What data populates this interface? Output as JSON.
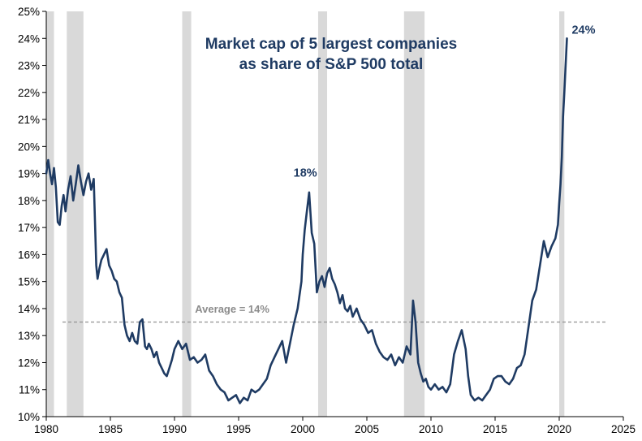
{
  "chart_data": {
    "type": "line",
    "title_lines": [
      "Market cap of 5 largest companies",
      "as share of S&P 500 total"
    ],
    "xlabel": "",
    "ylabel": "",
    "xlim": [
      1980,
      2025
    ],
    "ylim": [
      10,
      25
    ],
    "x_ticks": [
      "1980",
      "1985",
      "1990",
      "1995",
      "2000",
      "2005",
      "2010",
      "2015",
      "2020",
      "2025"
    ],
    "y_ticks": [
      "10%",
      "11%",
      "12%",
      "13%",
      "14%",
      "15%",
      "16%",
      "17%",
      "18%",
      "19%",
      "20%",
      "21%",
      "22%",
      "23%",
      "24%",
      "25%"
    ],
    "grid": false,
    "recessions": [
      [
        1980.0,
        1980.6
      ],
      [
        1981.6,
        1982.9
      ],
      [
        1990.6,
        1991.3
      ],
      [
        2001.2,
        2001.9
      ],
      [
        2007.9,
        2009.5
      ],
      [
        2020.0,
        2020.4
      ]
    ],
    "average": {
      "value": 13.5,
      "label": "Average = 14%"
    },
    "annotations": [
      {
        "text": "18%",
        "x": 2000.2,
        "y": 18.4
      },
      {
        "text": "24%",
        "x": 2020.6,
        "y": 24.0
      }
    ],
    "series": [
      {
        "color": "#1f3b63",
        "x": [
          1980.0,
          1980.15,
          1980.3,
          1980.45,
          1980.6,
          1980.75,
          1980.9,
          1981.05,
          1981.2,
          1981.35,
          1981.5,
          1981.7,
          1981.9,
          1982.1,
          1982.3,
          1982.5,
          1982.7,
          1982.9,
          1983.1,
          1983.3,
          1983.5,
          1983.7,
          1983.9,
          1984.0,
          1984.15,
          1984.3,
          1984.5,
          1984.7,
          1984.9,
          1985.1,
          1985.3,
          1985.5,
          1985.7,
          1985.9,
          1986.1,
          1986.3,
          1986.5,
          1986.7,
          1986.9,
          1987.1,
          1987.3,
          1987.5,
          1987.7,
          1987.85,
          1988.0,
          1988.2,
          1988.4,
          1988.6,
          1988.8,
          1989.0,
          1989.2,
          1989.4,
          1989.6,
          1989.8,
          1990.0,
          1990.3,
          1990.6,
          1990.9,
          1991.2,
          1991.5,
          1991.8,
          1992.1,
          1992.4,
          1992.7,
          1993.0,
          1993.3,
          1993.6,
          1993.9,
          1994.2,
          1994.5,
          1994.8,
          1995.1,
          1995.4,
          1995.7,
          1996.0,
          1996.3,
          1996.6,
          1996.9,
          1997.2,
          1997.5,
          1997.8,
          1998.1,
          1998.4,
          1998.7,
          1999.0,
          1999.3,
          1999.6,
          1999.9,
          2000.0,
          2000.15,
          2000.3,
          2000.5,
          2000.7,
          2000.9,
          2001.1,
          2001.3,
          2001.5,
          2001.7,
          2001.9,
          2002.1,
          2002.3,
          2002.5,
          2002.7,
          2002.9,
          2003.1,
          2003.3,
          2003.5,
          2003.7,
          2003.9,
          2004.2,
          2004.5,
          2004.8,
          2005.1,
          2005.4,
          2005.7,
          2006.0,
          2006.3,
          2006.6,
          2006.9,
          2007.2,
          2007.5,
          2007.8,
          2008.1,
          2008.4,
          2008.6,
          2008.8,
          2009.0,
          2009.2,
          2009.4,
          2009.6,
          2009.8,
          2010.0,
          2010.3,
          2010.6,
          2010.9,
          2011.2,
          2011.5,
          2011.8,
          2012.1,
          2012.4,
          2012.7,
          2012.9,
          2013.1,
          2013.4,
          2013.7,
          2014.0,
          2014.3,
          2014.6,
          2014.9,
          2015.2,
          2015.5,
          2015.8,
          2016.1,
          2016.4,
          2016.7,
          2017.0,
          2017.3,
          2017.6,
          2017.9,
          2018.2,
          2018.5,
          2018.8,
          2019.1,
          2019.4,
          2019.7,
          2019.9,
          2020.0,
          2020.1,
          2020.2,
          2020.3,
          2020.4,
          2020.5,
          2020.6
        ],
        "values": [
          19.0,
          19.5,
          19.0,
          18.6,
          19.2,
          18.5,
          17.2,
          17.1,
          17.8,
          18.2,
          17.6,
          18.4,
          18.9,
          18.0,
          18.6,
          19.3,
          18.7,
          18.2,
          18.7,
          19.0,
          18.4,
          18.8,
          15.6,
          15.1,
          15.5,
          15.8,
          16.0,
          16.2,
          15.6,
          15.4,
          15.1,
          15.0,
          14.6,
          14.4,
          13.4,
          13.0,
          12.8,
          13.1,
          12.8,
          12.7,
          13.5,
          13.6,
          12.6,
          12.5,
          12.7,
          12.5,
          12.2,
          12.4,
          12.0,
          11.8,
          11.6,
          11.5,
          11.8,
          12.1,
          12.5,
          12.8,
          12.5,
          12.7,
          12.1,
          12.2,
          12.0,
          12.1,
          12.3,
          11.7,
          11.5,
          11.2,
          11.0,
          10.9,
          10.6,
          10.7,
          10.8,
          10.5,
          10.7,
          10.6,
          11.0,
          10.9,
          11.0,
          11.2,
          11.4,
          11.9,
          12.2,
          12.5,
          12.8,
          12.0,
          12.7,
          13.4,
          14.0,
          15.0,
          16.0,
          16.9,
          17.5,
          18.3,
          16.8,
          16.4,
          14.6,
          15.0,
          15.2,
          14.8,
          15.3,
          15.5,
          15.1,
          14.9,
          14.6,
          14.2,
          14.5,
          14.0,
          13.9,
          14.1,
          13.7,
          14.0,
          13.6,
          13.4,
          13.1,
          13.2,
          12.7,
          12.4,
          12.2,
          12.1,
          12.3,
          11.9,
          12.2,
          12.0,
          12.6,
          12.3,
          14.3,
          13.5,
          12.0,
          11.6,
          11.3,
          11.4,
          11.1,
          11.0,
          11.2,
          11.0,
          11.1,
          10.9,
          11.2,
          12.3,
          12.8,
          13.2,
          12.5,
          11.5,
          10.8,
          10.6,
          10.7,
          10.6,
          10.8,
          11.0,
          11.4,
          11.5,
          11.5,
          11.3,
          11.2,
          11.4,
          11.8,
          11.9,
          12.3,
          13.3,
          14.3,
          14.7,
          15.6,
          16.5,
          15.9,
          16.3,
          16.6,
          17.1,
          17.9,
          18.6,
          19.6,
          21.1,
          22.0,
          23.0,
          24.0
        ]
      }
    ]
  }
}
